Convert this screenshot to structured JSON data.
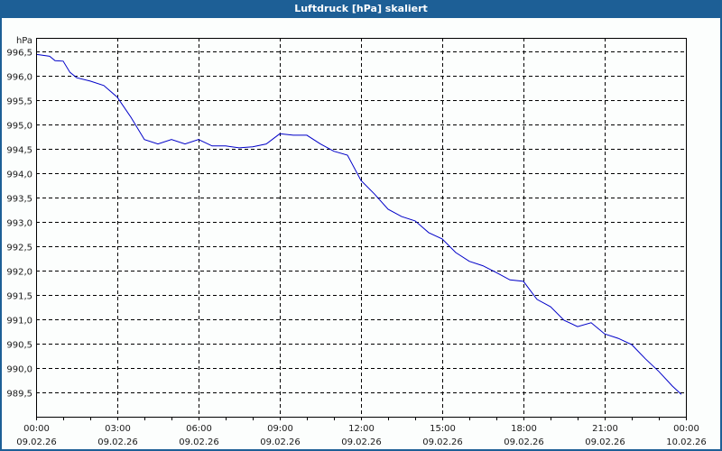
{
  "window": {
    "title": "Luftdruck [hPa] skaliert"
  },
  "colors": {
    "titlebar": "#1d5f96",
    "line": "#0000c8",
    "grid": "#000000",
    "background": "#fcfefd"
  },
  "chart_data": {
    "type": "line",
    "title": "Luftdruck [hPa] skaliert",
    "ylabel": "hPa",
    "xlabel": "",
    "ylim": [
      989.2,
      996.8
    ],
    "yticks": [
      "996,5",
      "996,0",
      "995,5",
      "995,0",
      "994,5",
      "994,0",
      "993,5",
      "993,0",
      "992,5",
      "992,0",
      "991,5",
      "991,0",
      "990,5",
      "990,0",
      "989,5"
    ],
    "xticks": [
      {
        "time": "00:00",
        "date": "09.02.26"
      },
      {
        "time": "03:00",
        "date": "09.02.26"
      },
      {
        "time": "06:00",
        "date": "09.02.26"
      },
      {
        "time": "09:00",
        "date": "09.02.26"
      },
      {
        "time": "12:00",
        "date": "09.02.26"
      },
      {
        "time": "15:00",
        "date": "09.02.26"
      },
      {
        "time": "18:00",
        "date": "09.02.26"
      },
      {
        "time": "21:00",
        "date": "09.02.26"
      },
      {
        "time": "00:00",
        "date": "10.02.26"
      }
    ],
    "grid": true,
    "series": [
      {
        "name": "Luftdruck",
        "x_hours": [
          0,
          0.5,
          0.7,
          1.0,
          1.25,
          1.5,
          2.0,
          2.5,
          3.0,
          3.5,
          4.0,
          4.5,
          5.0,
          5.5,
          6.0,
          6.5,
          7.0,
          7.5,
          8.0,
          8.5,
          9.0,
          9.5,
          10.0,
          10.5,
          11.0,
          11.5,
          12.0,
          12.5,
          13.0,
          13.5,
          14.0,
          14.5,
          15.0,
          15.5,
          16.0,
          16.5,
          17.0,
          17.5,
          18.0,
          18.5,
          19.0,
          19.5,
          20.0,
          20.5,
          21.0,
          21.5,
          22.0,
          22.5,
          23.0,
          23.5,
          23.83
        ],
        "values": [
          996.44,
          996.4,
          996.31,
          996.3,
          996.07,
          995.96,
          995.89,
          995.8,
          995.56,
          995.15,
          994.69,
          994.6,
          994.69,
          994.6,
          994.69,
          994.56,
          994.56,
          994.52,
          994.54,
          994.6,
          994.81,
          994.78,
          994.78,
          994.6,
          994.45,
          994.37,
          993.85,
          993.57,
          993.26,
          993.11,
          993.02,
          992.78,
          992.65,
          992.37,
          992.19,
          992.1,
          991.96,
          991.81,
          991.78,
          991.41,
          991.26,
          990.98,
          990.85,
          990.93,
          990.7,
          990.61,
          990.48,
          990.19,
          989.93,
          989.63,
          989.46
        ]
      }
    ]
  }
}
